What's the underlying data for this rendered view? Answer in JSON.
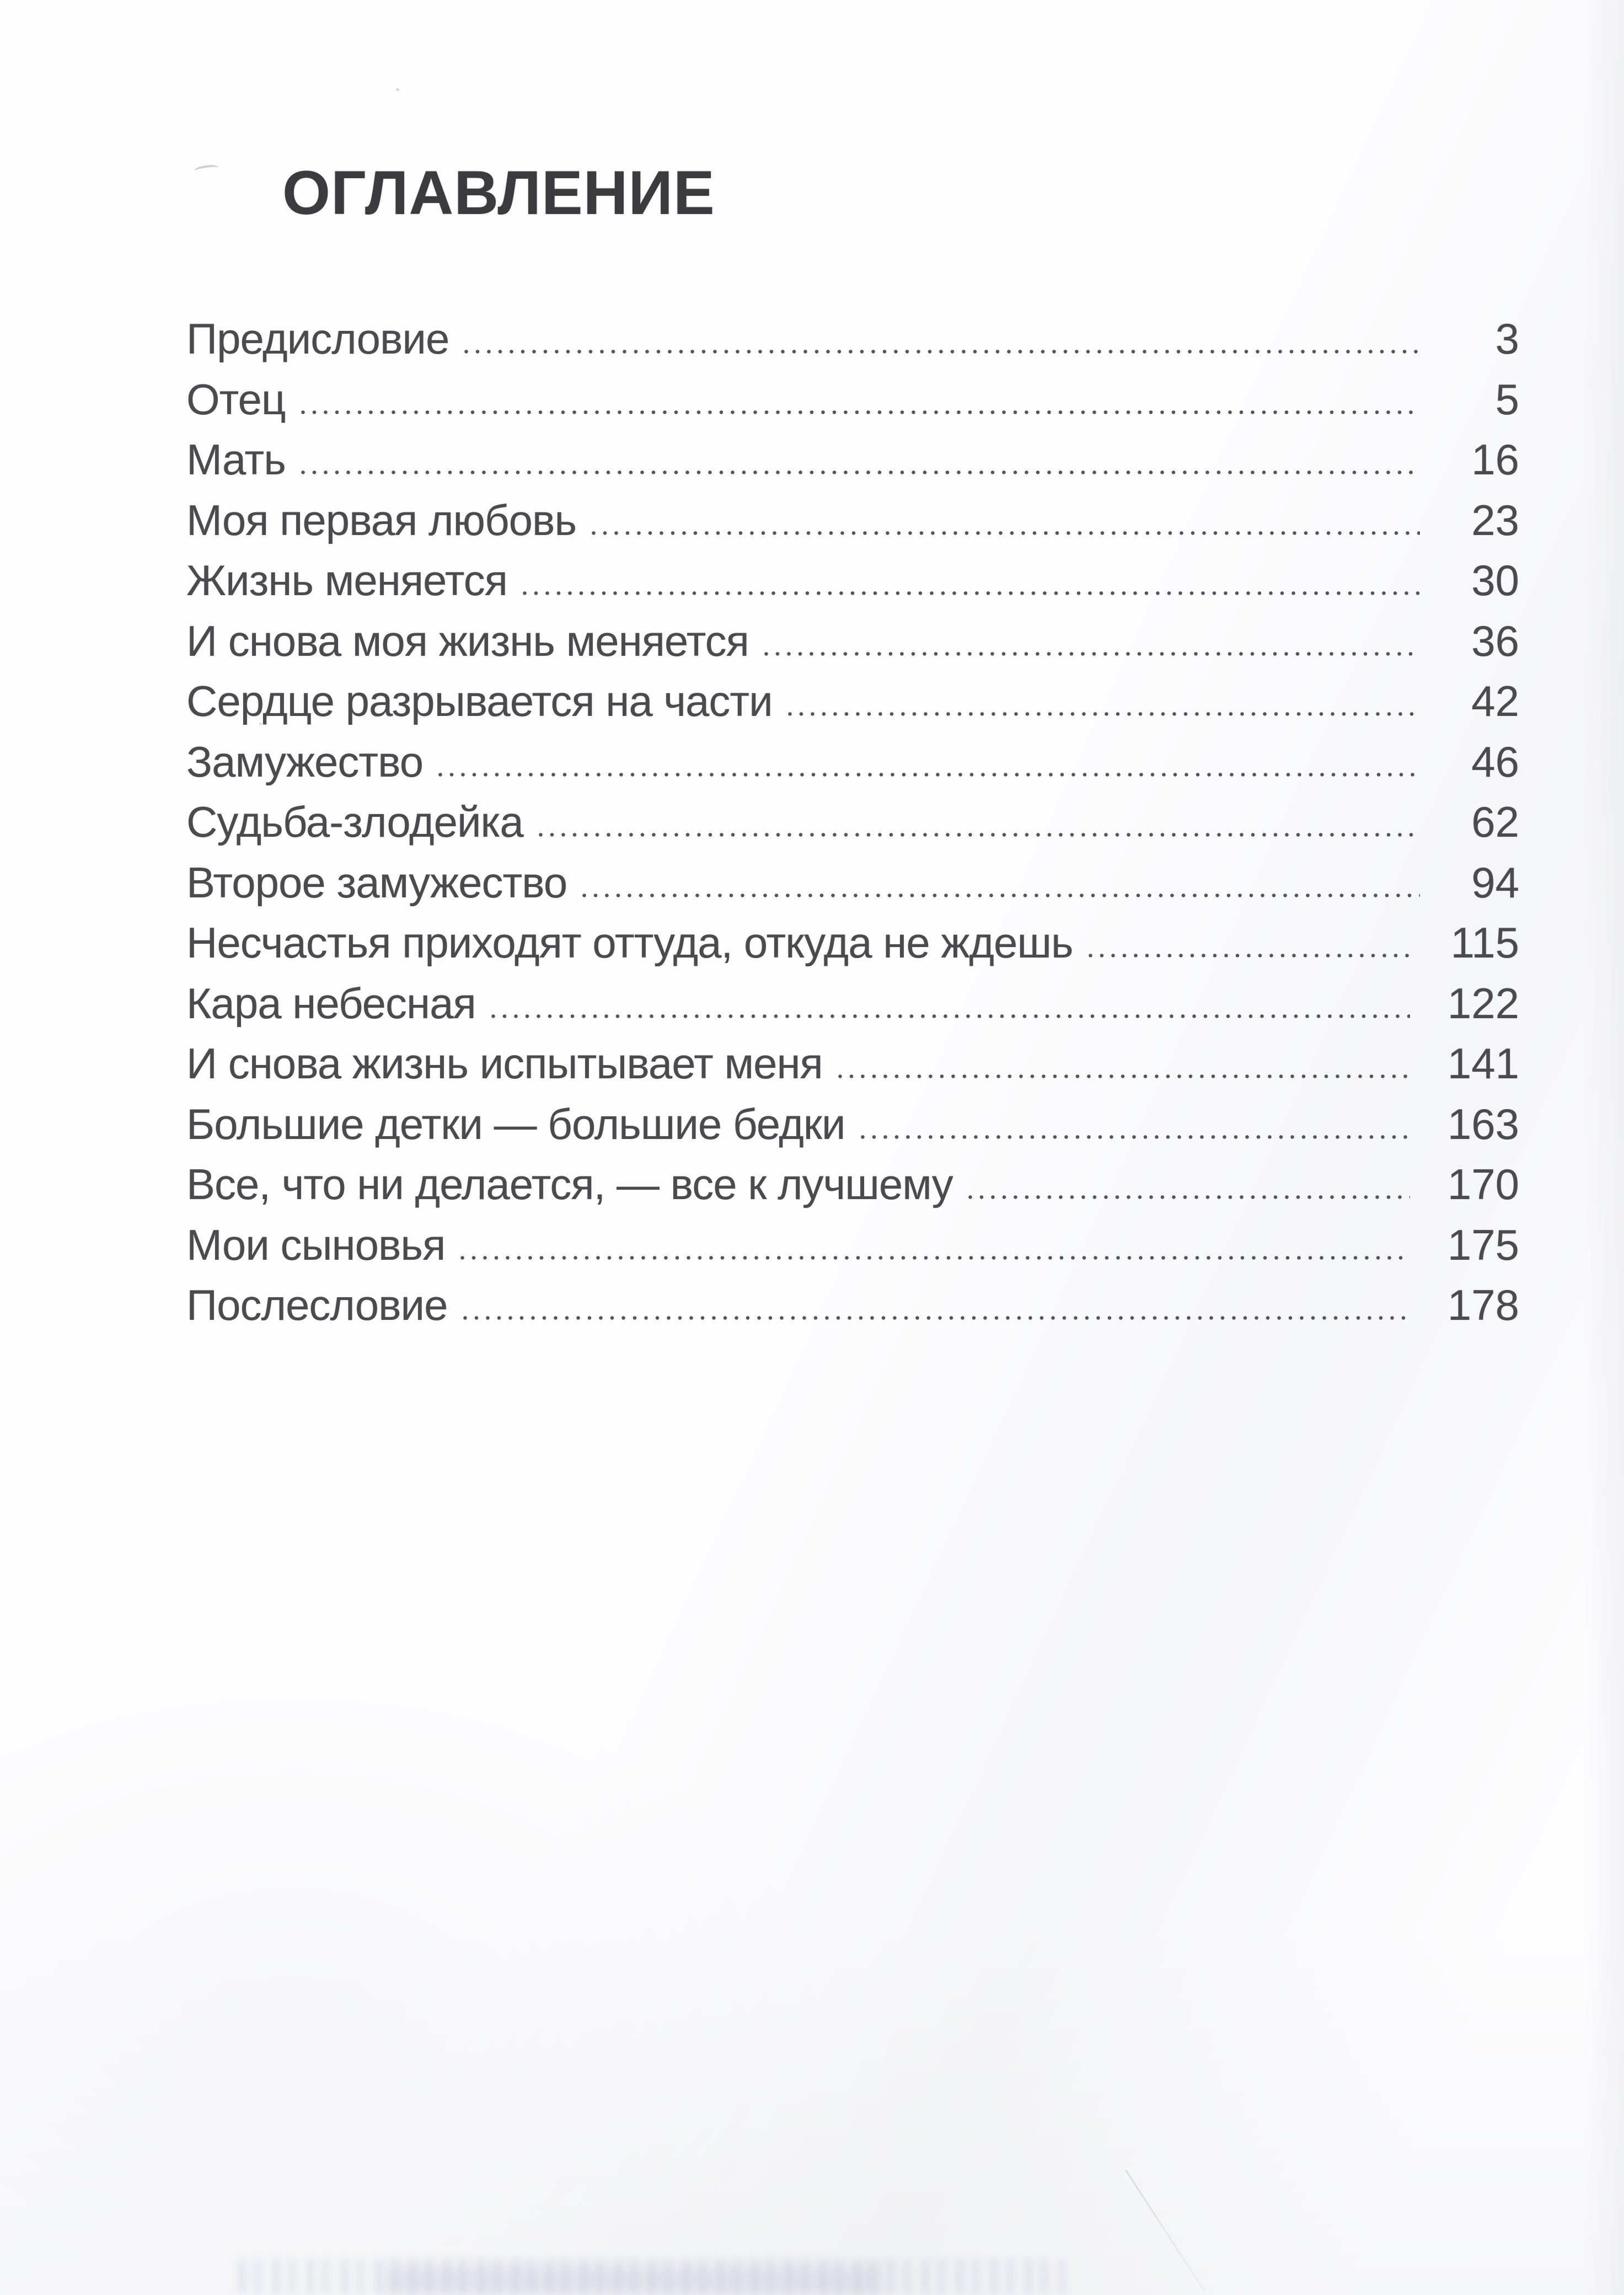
{
  "page": {
    "title": "ОГЛАВЛЕНИЕ",
    "entries": [
      {
        "label": "Предисловие",
        "page": "3"
      },
      {
        "label": "Отец",
        "page": "5"
      },
      {
        "label": "Мать",
        "page": "16"
      },
      {
        "label": "Моя первая любовь",
        "page": "23"
      },
      {
        "label": "Жизнь меняется",
        "page": "30"
      },
      {
        "label": "И снова моя жизнь меняется",
        "page": "36"
      },
      {
        "label": "Сердце разрывается на части",
        "page": "42"
      },
      {
        "label": "Замужество",
        "page": "46"
      },
      {
        "label": "Судьба-злодейка",
        "page": "62"
      },
      {
        "label": "Второе замужество",
        "page": "94"
      },
      {
        "label": "Несчастья приходят оттуда, откуда не ждешь",
        "page": "115"
      },
      {
        "label": "Кара небесная",
        "page": "122"
      },
      {
        "label": "И снова жизнь испытывает меня",
        "page": "141"
      },
      {
        "label": "Большие детки — большие бедки",
        "page": "163"
      },
      {
        "label": "Все, что ни делается, — все к лучшему",
        "page": "170"
      },
      {
        "label": "Мои сыновья",
        "page": "175"
      },
      {
        "label": "Послесловие",
        "page": "178"
      }
    ],
    "colors": {
      "title": "#3b3b3d",
      "text": "#4b4b4e",
      "background": "#fdfdfe"
    }
  }
}
